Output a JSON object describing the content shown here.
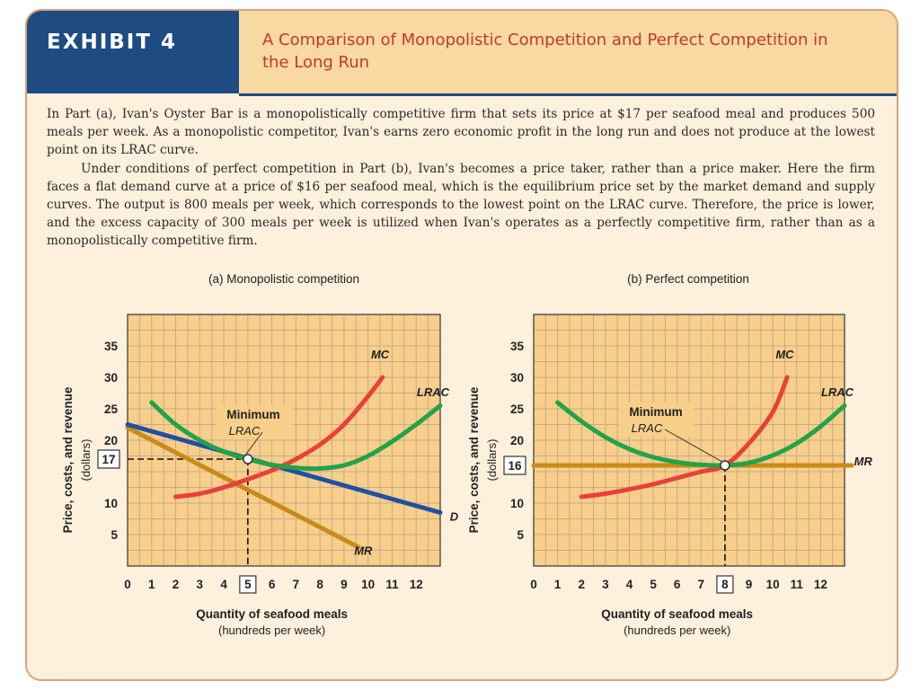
{
  "header": {
    "exhibit": "EXHIBIT 4",
    "title": "A Comparison of Monopolistic Competition and Perfect Competition in the Long Run"
  },
  "text": {
    "p1": "In Part (a), Ivan's Oyster Bar is a monopolistically competitive firm that sets its price at $17 per seafood meal and produces 500 meals per week. As a monopolistic competitor, Ivan's earns zero economic profit in the long run and does not produce at the lowest point on its LRAC curve.",
    "p2": "Under conditions of perfect competition in Part (b), Ivan's becomes a price taker, rather than a price maker. Here the firm faces a flat demand curve at a price of $16 per seafood meal, which is the equilibrium price set by the market demand and supply curves. The output is 800 meals per week, which corresponds to the lowest point on the LRAC curve. Therefore, the price is lower, and the excess capacity of 300 meals per week is utilized when Ivan's operates as a perfectly competitive firm, rather than as a monopolistically competitive firm."
  },
  "colors": {
    "mc": "#e8403a",
    "lrac": "#21a34a",
    "d": "#1f4fa3",
    "mr": "#c98a1a",
    "grid": "#c9a98c",
    "plot_bg": "#f7cf8a",
    "header_blue": "#1e4b82"
  },
  "chart_data": [
    {
      "type": "line",
      "title": "(a) Monopolistic competition",
      "xlabel": "Quantity of seafood meals",
      "xlabel_sub": "(hundreds per week)",
      "ylabel": "Price, costs, and revenue",
      "ylabel_sub": "(dollars)",
      "xlim": [
        0,
        13
      ],
      "ylim": [
        0,
        40
      ],
      "x_ticks": [
        0,
        1,
        2,
        3,
        4,
        5,
        6,
        7,
        8,
        9,
        10,
        11,
        12
      ],
      "y_ticks": [
        5,
        10,
        20,
        25,
        30,
        35
      ],
      "boxed_x": "5",
      "boxed_y": "17",
      "grid": true,
      "series": [
        {
          "name": "MC",
          "color": "#e8403a",
          "points": [
            [
              2,
              11
            ],
            [
              3,
              11.5
            ],
            [
              4,
              12.5
            ],
            [
              5,
              13.8
            ],
            [
              6,
              15.2
            ],
            [
              7,
              17
            ],
            [
              8,
              19.3
            ],
            [
              9,
              22.5
            ],
            [
              10,
              27
            ],
            [
              10.6,
              30
            ]
          ]
        },
        {
          "name": "LRAC",
          "color": "#21a34a",
          "points": [
            [
              1,
              26
            ],
            [
              2,
              22.5
            ],
            [
              3,
              20
            ],
            [
              4,
              18.2
            ],
            [
              5,
              17
            ],
            [
              6,
              16.1
            ],
            [
              7,
              15.6
            ],
            [
              8,
              15.5
            ],
            [
              9,
              16
            ],
            [
              10,
              17.5
            ],
            [
              11,
              19.8
            ],
            [
              12,
              22.5
            ],
            [
              13,
              25.5
            ]
          ]
        },
        {
          "name": "D",
          "color": "#1f4fa3",
          "points": [
            [
              0,
              22.5
            ],
            [
              13,
              8.5
            ]
          ]
        },
        {
          "name": "MR",
          "color": "#c98a1a",
          "points": [
            [
              0,
              22
            ],
            [
              9.6,
              3
            ]
          ]
        }
      ],
      "annotation": {
        "label_1": "Minimum",
        "label_2": "LRAC",
        "point": [
          5,
          17
        ]
      }
    },
    {
      "type": "line",
      "title": "(b) Perfect competition",
      "xlabel": "Quantity of seafood meals",
      "xlabel_sub": "(hundreds per week)",
      "ylabel": "Price, costs, and revenue",
      "ylabel_sub": "(dollars)",
      "xlim": [
        0,
        13
      ],
      "ylim": [
        0,
        40
      ],
      "x_ticks": [
        0,
        1,
        2,
        3,
        4,
        5,
        6,
        7,
        8,
        9,
        10,
        11,
        12
      ],
      "y_ticks": [
        5,
        10,
        20,
        25,
        30,
        35
      ],
      "boxed_x": "8",
      "boxed_y": "16",
      "grid": true,
      "series": [
        {
          "name": "MC",
          "color": "#e8403a",
          "points": [
            [
              2,
              11
            ],
            [
              3,
              11.5
            ],
            [
              4,
              12.2
            ],
            [
              5,
              13
            ],
            [
              6,
              14
            ],
            [
              7,
              15
            ],
            [
              8,
              16
            ],
            [
              9,
              19.5
            ],
            [
              10,
              24.5
            ],
            [
              10.6,
              30
            ]
          ]
        },
        {
          "name": "LRAC",
          "color": "#21a34a",
          "points": [
            [
              1,
              26
            ],
            [
              2,
              23
            ],
            [
              3,
              20.5
            ],
            [
              4,
              18.6
            ],
            [
              5,
              17.3
            ],
            [
              6,
              16.5
            ],
            [
              7,
              16.1
            ],
            [
              8,
              16
            ],
            [
              9,
              16.4
            ],
            [
              10,
              17.6
            ],
            [
              11,
              19.5
            ],
            [
              12,
              22.2
            ],
            [
              13,
              25.5
            ]
          ]
        },
        {
          "name": "MR",
          "color": "#c98a1a",
          "points": [
            [
              0,
              16
            ],
            [
              13.3,
              16
            ]
          ]
        }
      ],
      "annotation": {
        "label_1": "Minimum",
        "label_2": "LRAC",
        "point": [
          8,
          16
        ]
      }
    }
  ]
}
